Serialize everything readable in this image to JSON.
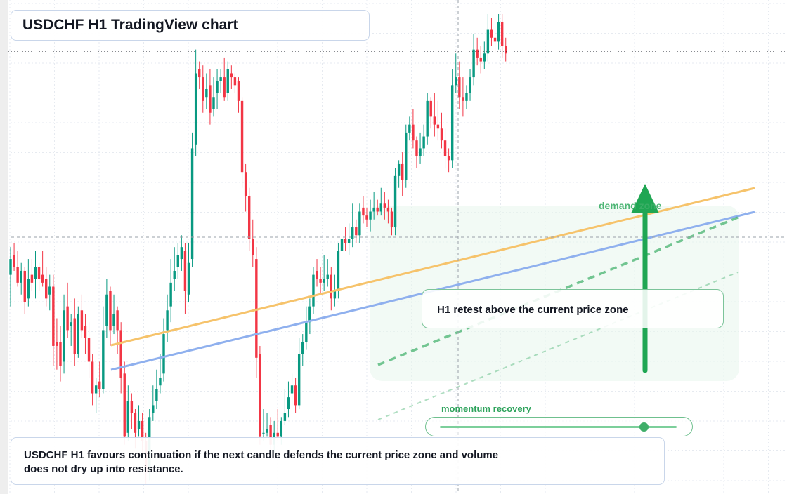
{
  "title": "USDCHF H1 TradingView chart",
  "callout": "H1 retest above the current price zone",
  "demand_label": "demand zone",
  "momentum": {
    "label": "momentum recovery",
    "level": 0.86
  },
  "footer": "USDCHF H1 favours continuation if the next candle defends the current price zone and volume does not dry up into resistance.",
  "colors": {
    "up": "#089981",
    "down": "#f23645",
    "grid": "#e6eaf0",
    "orange_line": "#f6c36b",
    "blue_line": "#8fb0ee",
    "green": "#1fa653",
    "demand_zone": "#eaf7ee"
  },
  "chart_data": {
    "type": "candlestick",
    "symbol": "USDCHF",
    "timeframe": "H1",
    "grid": true,
    "note": "prices in relative units (no price axis visible); 0 = lowest, 100 = highest",
    "candles": [
      [
        38,
        42,
        30,
        45
      ],
      [
        43,
        40,
        39,
        46
      ],
      [
        40,
        36,
        35,
        44
      ],
      [
        36,
        39,
        33,
        41
      ],
      [
        39,
        31,
        28,
        40
      ],
      [
        32,
        37,
        30,
        42
      ],
      [
        38,
        36,
        34,
        42
      ],
      [
        37,
        40,
        32,
        44
      ],
      [
        40,
        37,
        34,
        41
      ],
      [
        38,
        36,
        35,
        44
      ],
      [
        37,
        32,
        30,
        40
      ],
      [
        33,
        35,
        29,
        38
      ],
      [
        35,
        20,
        15,
        38
      ],
      [
        21,
        20,
        14,
        27
      ],
      [
        21,
        15,
        11,
        25
      ],
      [
        16,
        29,
        13,
        33
      ],
      [
        30,
        24,
        22,
        36
      ],
      [
        25,
        26,
        20,
        28
      ],
      [
        27,
        18,
        15,
        32
      ],
      [
        18,
        28,
        17,
        30
      ],
      [
        29,
        24,
        22,
        33
      ],
      [
        25,
        22,
        18,
        28
      ],
      [
        22,
        16,
        12,
        26
      ],
      [
        16,
        8,
        5,
        18
      ],
      [
        8,
        10,
        3,
        12
      ],
      [
        11,
        9,
        7,
        16
      ],
      [
        9,
        24,
        8,
        30
      ],
      [
        25,
        33,
        22,
        37
      ],
      [
        34,
        24,
        20,
        35
      ],
      [
        25,
        28,
        23,
        33
      ],
      [
        29,
        24,
        18,
        30
      ],
      [
        24,
        12,
        8,
        26
      ],
      [
        13,
        -3,
        -5,
        16
      ],
      [
        -2,
        6,
        -4,
        10
      ],
      [
        6,
        3,
        -1,
        8
      ],
      [
        3,
        -2,
        -6,
        4
      ],
      [
        -1,
        1,
        -3,
        5
      ],
      [
        1,
        -4,
        -8,
        3
      ],
      [
        -4,
        -12,
        -15,
        -2
      ],
      [
        -11,
        2,
        -14,
        4
      ],
      [
        3,
        5,
        1,
        10
      ],
      [
        6,
        9,
        4,
        14
      ],
      [
        10,
        12,
        8,
        18
      ],
      [
        13,
        23,
        11,
        27
      ],
      [
        24,
        29,
        21,
        33
      ],
      [
        30,
        36,
        26,
        42
      ],
      [
        37,
        39,
        34,
        45
      ],
      [
        40,
        43,
        37,
        46
      ],
      [
        42,
        45,
        39,
        48
      ],
      [
        44,
        34,
        28,
        46
      ],
      [
        33,
        41,
        31,
        46
      ],
      [
        42,
        70,
        40,
        74
      ],
      [
        71,
        89,
        68,
        95
      ],
      [
        90,
        88,
        85,
        92
      ],
      [
        88,
        82,
        79,
        91
      ],
      [
        83,
        85,
        80,
        89
      ],
      [
        86,
        79,
        76,
        90
      ],
      [
        80,
        83,
        78,
        88
      ],
      [
        84,
        87,
        80,
        90
      ],
      [
        87,
        88,
        84,
        90
      ],
      [
        88,
        83,
        82,
        93
      ],
      [
        84,
        90,
        82,
        92
      ],
      [
        89,
        88,
        85,
        91
      ],
      [
        88,
        86,
        84,
        89
      ],
      [
        87,
        82,
        79,
        88
      ],
      [
        82,
        64,
        60,
        83
      ],
      [
        64,
        58,
        54,
        66
      ],
      [
        58,
        47,
        44,
        60
      ],
      [
        47,
        43,
        40,
        52
      ],
      [
        42,
        17,
        12,
        45
      ],
      [
        18,
        -3,
        -5,
        20
      ],
      [
        -2,
        -2,
        -4,
        4
      ],
      [
        -2,
        -1,
        -3,
        3
      ],
      [
        0,
        -5,
        -8,
        2
      ],
      [
        -5,
        -2,
        -7,
        1
      ],
      [
        -2,
        -3,
        -4,
        4
      ],
      [
        -3,
        1,
        -5,
        2
      ],
      [
        1,
        3,
        0,
        9
      ],
      [
        4,
        7,
        2,
        11
      ],
      [
        8,
        10,
        5,
        13
      ],
      [
        10,
        5,
        3,
        12
      ],
      [
        5,
        18,
        4,
        22
      ],
      [
        18,
        21,
        15,
        23
      ],
      [
        21,
        26,
        19,
        30
      ],
      [
        26,
        30,
        23,
        32
      ],
      [
        30,
        38,
        28,
        40
      ],
      [
        39,
        37,
        35,
        42
      ],
      [
        37,
        36,
        33,
        40
      ],
      [
        36,
        37,
        34,
        43
      ],
      [
        37,
        38,
        35,
        42
      ],
      [
        38,
        32,
        29,
        40
      ],
      [
        32,
        34,
        30,
        38
      ],
      [
        34,
        44,
        32,
        46
      ],
      [
        44,
        47,
        42,
        49
      ],
      [
        47,
        46,
        44,
        50
      ],
      [
        46,
        47,
        43,
        51
      ],
      [
        47,
        50,
        45,
        56
      ],
      [
        50,
        48,
        46,
        52
      ],
      [
        48,
        54,
        46,
        56
      ],
      [
        55,
        53,
        51,
        58
      ],
      [
        53,
        52,
        50,
        55
      ],
      [
        52,
        54,
        49,
        57
      ],
      [
        54,
        55,
        52,
        59
      ],
      [
        55,
        54,
        53,
        57
      ],
      [
        54,
        56,
        53,
        60
      ],
      [
        56,
        55,
        52,
        59
      ],
      [
        55,
        54,
        51,
        57
      ],
      [
        54,
        50,
        48,
        55
      ],
      [
        50,
        63,
        48,
        65
      ],
      [
        63,
        66,
        60,
        67
      ],
      [
        66,
        62,
        58,
        69
      ],
      [
        62,
        74,
        60,
        76
      ],
      [
        74,
        76,
        72,
        78
      ],
      [
        76,
        72,
        70,
        80
      ],
      [
        72,
        68,
        65,
        73
      ],
      [
        68,
        70,
        66,
        74
      ],
      [
        70,
        73,
        68,
        76
      ],
      [
        73,
        82,
        71,
        84
      ],
      [
        82,
        78,
        75,
        83
      ],
      [
        78,
        76,
        73,
        84
      ],
      [
        76,
        75,
        72,
        82
      ],
      [
        75,
        72,
        70,
        79
      ],
      [
        72,
        68,
        65,
        75
      ],
      [
        68,
        67,
        64,
        70
      ],
      [
        67,
        86,
        65,
        90
      ],
      [
        86,
        88,
        84,
        94
      ],
      [
        88,
        83,
        80,
        92
      ],
      [
        83,
        82,
        78,
        88
      ],
      [
        82,
        84,
        80,
        86
      ],
      [
        84,
        88,
        82,
        90
      ],
      [
        88,
        95,
        86,
        99
      ],
      [
        95,
        93,
        91,
        98
      ],
      [
        93,
        92,
        89,
        96
      ],
      [
        92,
        94,
        90,
        97
      ],
      [
        94,
        100,
        92,
        104
      ],
      [
        100,
        98,
        96,
        103
      ],
      [
        98,
        97,
        94,
        101
      ],
      [
        97,
        102,
        95,
        104
      ],
      [
        102,
        96,
        93,
        104
      ],
      [
        96,
        94,
        92,
        98
      ]
    ],
    "trendlines": [
      {
        "name": "",
        "color": "orange"
      },
      {
        "name": "",
        "color": "blue"
      }
    ]
  }
}
